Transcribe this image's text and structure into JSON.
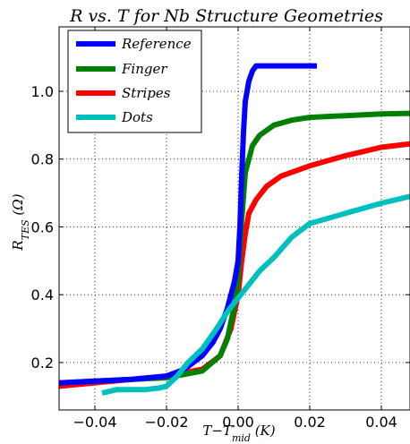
{
  "chart_data": {
    "type": "line",
    "title": "R vs. T for Nb Structure Geometries",
    "xlabel": "T−T",
    "xlabel_sub": "mid",
    "xlabel_unit": " (K)",
    "ylabel": "R",
    "ylabel_sub": "TES",
    "ylabel_unit": " (Ω)",
    "xlim": [
      -0.05,
      0.048
    ],
    "ylim": [
      0.06,
      1.19
    ],
    "xticks": [
      -0.04,
      -0.02,
      0.0,
      0.02,
      0.04
    ],
    "xtick_labels": [
      "−0.04",
      "−0.02",
      "0.00",
      "0.02",
      "0.04"
    ],
    "yticks": [
      0.2,
      0.4,
      0.6,
      0.8,
      1.0
    ],
    "ytick_labels": [
      "0.2",
      "0.4",
      "0.6",
      "0.8",
      "1.0"
    ],
    "grid": true,
    "legend_position": "top-left",
    "series": [
      {
        "name": "Reference",
        "color": "#0000ff",
        "points": [
          [
            -0.05,
            0.14
          ],
          [
            -0.04,
            0.145
          ],
          [
            -0.03,
            0.15
          ],
          [
            -0.02,
            0.16
          ],
          [
            -0.015,
            0.18
          ],
          [
            -0.01,
            0.22
          ],
          [
            -0.007,
            0.26
          ],
          [
            -0.005,
            0.3
          ],
          [
            -0.003,
            0.36
          ],
          [
            -0.001,
            0.44
          ],
          [
            0.0,
            0.5
          ],
          [
            0.0005,
            0.6
          ],
          [
            0.001,
            0.75
          ],
          [
            0.0015,
            0.88
          ],
          [
            0.002,
            0.97
          ],
          [
            0.003,
            1.03
          ],
          [
            0.004,
            1.06
          ],
          [
            0.005,
            1.075
          ],
          [
            0.01,
            1.075
          ],
          [
            0.015,
            1.075
          ],
          [
            0.022,
            1.075
          ]
        ]
      },
      {
        "name": "Finger",
        "color": "#008000",
        "points": [
          [
            -0.05,
            0.14
          ],
          [
            -0.04,
            0.145
          ],
          [
            -0.03,
            0.15
          ],
          [
            -0.02,
            0.155
          ],
          [
            -0.01,
            0.175
          ],
          [
            -0.005,
            0.22
          ],
          [
            -0.003,
            0.27
          ],
          [
            -0.001,
            0.37
          ],
          [
            0.0,
            0.45
          ],
          [
            0.001,
            0.62
          ],
          [
            0.002,
            0.76
          ],
          [
            0.004,
            0.84
          ],
          [
            0.006,
            0.87
          ],
          [
            0.01,
            0.9
          ],
          [
            0.015,
            0.915
          ],
          [
            0.02,
            0.923
          ],
          [
            0.03,
            0.928
          ],
          [
            0.04,
            0.933
          ],
          [
            0.048,
            0.935
          ]
        ]
      },
      {
        "name": "Stripes",
        "color": "#ff0000",
        "points": [
          [
            -0.05,
            0.13
          ],
          [
            -0.04,
            0.14
          ],
          [
            -0.03,
            0.15
          ],
          [
            -0.02,
            0.16
          ],
          [
            -0.01,
            0.18
          ],
          [
            -0.005,
            0.22
          ],
          [
            -0.002,
            0.3
          ],
          [
            0.0,
            0.4
          ],
          [
            0.001,
            0.5
          ],
          [
            0.002,
            0.58
          ],
          [
            0.003,
            0.64
          ],
          [
            0.005,
            0.68
          ],
          [
            0.008,
            0.72
          ],
          [
            0.012,
            0.75
          ],
          [
            0.02,
            0.78
          ],
          [
            0.03,
            0.81
          ],
          [
            0.04,
            0.835
          ],
          [
            0.048,
            0.845
          ]
        ]
      },
      {
        "name": "Dots",
        "color": "#00bfbf",
        "points": [
          [
            -0.038,
            0.11
          ],
          [
            -0.034,
            0.12
          ],
          [
            -0.03,
            0.12
          ],
          [
            -0.026,
            0.12
          ],
          [
            -0.022,
            0.125
          ],
          [
            -0.02,
            0.13
          ],
          [
            -0.017,
            0.16
          ],
          [
            -0.014,
            0.2
          ],
          [
            -0.01,
            0.24
          ],
          [
            -0.006,
            0.3
          ],
          [
            -0.003,
            0.35
          ],
          [
            0.0,
            0.39
          ],
          [
            0.003,
            0.43
          ],
          [
            0.006,
            0.47
          ],
          [
            0.01,
            0.51
          ],
          [
            0.015,
            0.57
          ],
          [
            0.02,
            0.61
          ],
          [
            0.03,
            0.64
          ],
          [
            0.04,
            0.67
          ],
          [
            0.048,
            0.69
          ]
        ]
      }
    ]
  }
}
